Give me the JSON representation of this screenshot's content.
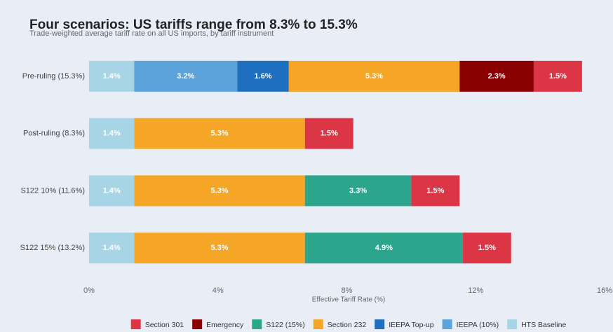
{
  "chart_data": {
    "type": "stacked_barh",
    "title": "Four scenarios: US tariffs range from 8.3% to 15.3%",
    "subtitle": "Trade-weighted average tariff rate on all US imports, by tariff instrument",
    "xlabel": "Effective Tariff Rate (%)",
    "categories": [
      "Pre-ruling (15.3%)",
      "Post-ruling (8.3%)",
      "S122 10% (11.6%)",
      "S122 15% (13.2%)"
    ],
    "series": [
      {
        "name": "HTS Baseline",
        "color": "#a8d5e6",
        "values": [
          1.4,
          1.4,
          1.4,
          1.4
        ],
        "value_labels": [
          "1.4%",
          "1.4%",
          "1.4%",
          "1.4%"
        ]
      },
      {
        "name": "IEEPA (10%)",
        "color": "#5ba3da",
        "values": [
          3.2,
          null,
          null,
          null
        ],
        "value_labels": [
          "3.2%",
          null,
          null,
          null
        ]
      },
      {
        "name": "IEEPA Top-up",
        "color": "#1f6fc0",
        "values": [
          1.6,
          null,
          null,
          null
        ],
        "value_labels": [
          "1.6%",
          null,
          null,
          null
        ]
      },
      {
        "name": "Section 232",
        "color": "#f5a626",
        "values": [
          5.3,
          5.3,
          5.3,
          5.3
        ],
        "value_labels": [
          "5.3%",
          "5.3%",
          "5.3%",
          "5.3%"
        ]
      },
      {
        "name": "S122 (15%)",
        "color": "#2ba58b",
        "values": [
          null,
          null,
          3.3,
          4.9
        ],
        "value_labels": [
          null,
          null,
          "3.3%",
          "4.9%"
        ]
      },
      {
        "name": "Emergency",
        "color": "#8b0000",
        "values": [
          2.3,
          null,
          null,
          null
        ],
        "value_labels": [
          "2.3%",
          null,
          null,
          null
        ]
      },
      {
        "name": "Section 301",
        "color": "#dc3545",
        "values": [
          1.5,
          1.5,
          1.5,
          1.5
        ],
        "value_labels": [
          "1.5%",
          "1.5%",
          "1.5%",
          "1.5%"
        ]
      }
    ],
    "xlim": [
      0,
      16
    ],
    "xticks": [
      {
        "value": 0,
        "label": "0%"
      },
      {
        "value": 4,
        "label": "4%"
      },
      {
        "value": 8,
        "label": "8%"
      },
      {
        "value": 12,
        "label": "12%"
      },
      {
        "value": 16,
        "label": "16%"
      }
    ],
    "legend": "bottom"
  }
}
